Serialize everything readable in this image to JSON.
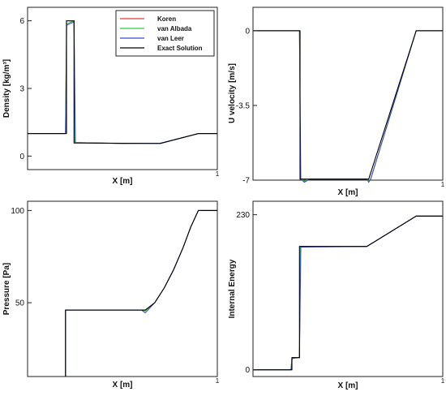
{
  "chart_data": [
    {
      "type": "line",
      "id": "density",
      "xlabel": "X [m]",
      "ylabel": "Density [kg/m³]",
      "xlim": [
        0,
        1
      ],
      "ylim": [
        -0.6,
        6.6
      ],
      "xticks": [
        {
          "v": 1,
          "label": "1"
        }
      ],
      "yticks": [
        {
          "v": 0,
          "label": "0"
        },
        {
          "v": 3,
          "label": "3"
        },
        {
          "v": 6,
          "label": "6"
        }
      ],
      "colors": {
        "koren": "#e53935",
        "van_albada": "#2ecc40",
        "van_leer": "#3b49d6",
        "exact": "#000000"
      },
      "legend": {
        "position": "top-right",
        "entries": [
          "Koren",
          "van Albada",
          "van Leer",
          "Exact Solution"
        ]
      },
      "series": [
        {
          "key": "koren",
          "name": "Koren",
          "points": [
            [
              0,
              1
            ],
            [
              0.2,
              1
            ],
            [
              0.205,
              5.85
            ],
            [
              0.23,
              5.95
            ],
            [
              0.245,
              6
            ],
            [
              0.25,
              0.6
            ],
            [
              0.5,
              0.56
            ],
            [
              0.7,
              0.57
            ],
            [
              0.9,
              1
            ],
            [
              1,
              1
            ]
          ]
        },
        {
          "key": "van_albada",
          "name": "van Albada",
          "points": [
            [
              0,
              1
            ],
            [
              0.2,
              1
            ],
            [
              0.205,
              5.85
            ],
            [
              0.23,
              5.95
            ],
            [
              0.245,
              6
            ],
            [
              0.25,
              0.6
            ],
            [
              0.5,
              0.56
            ],
            [
              0.7,
              0.57
            ],
            [
              0.9,
              1
            ],
            [
              1,
              1
            ]
          ]
        },
        {
          "key": "van_leer",
          "name": "van Leer",
          "points": [
            [
              0,
              1
            ],
            [
              0.2,
              1
            ],
            [
              0.206,
              5.8
            ],
            [
              0.23,
              5.9
            ],
            [
              0.245,
              5.95
            ],
            [
              0.252,
              0.6
            ],
            [
              0.5,
              0.56
            ],
            [
              0.7,
              0.57
            ],
            [
              0.9,
              1
            ],
            [
              1,
              1
            ]
          ]
        },
        {
          "key": "exact",
          "name": "Exact Solution",
          "points": [
            [
              0,
              1
            ],
            [
              0.205,
              1
            ],
            [
              0.205,
              6
            ],
            [
              0.245,
              6
            ],
            [
              0.245,
              0.58
            ],
            [
              0.7,
              0.56
            ],
            [
              0.9,
              1
            ],
            [
              1,
              1
            ]
          ]
        }
      ]
    },
    {
      "type": "line",
      "id": "velocity",
      "xlabel": "X [m]",
      "ylabel": "U velocity [m/s]",
      "xlim": [
        0,
        1
      ],
      "ylim": [
        -7,
        1.1
      ],
      "xticks": [
        {
          "v": 1,
          "label": "1"
        }
      ],
      "yticks": [
        {
          "v": -7,
          "label": "-7"
        },
        {
          "v": -3.5,
          "label": "-3.5"
        },
        {
          "v": 0,
          "label": "0"
        }
      ],
      "colors": {
        "koren": "#e53935",
        "van_albada": "#2ecc40",
        "van_leer": "#3b49d6",
        "exact": "#000000"
      },
      "series": [
        {
          "key": "koren",
          "name": "Koren",
          "points": [
            [
              0,
              0
            ],
            [
              0.245,
              0
            ],
            [
              0.25,
              -6.95
            ],
            [
              0.27,
              -7.05
            ],
            [
              0.3,
              -6.95
            ],
            [
              0.6,
              -6.95
            ],
            [
              0.61,
              -7.05
            ],
            [
              0.62,
              -6.95
            ],
            [
              0.86,
              0
            ],
            [
              1,
              0
            ]
          ]
        },
        {
          "key": "van_albada",
          "name": "van Albada",
          "points": [
            [
              0,
              0
            ],
            [
              0.245,
              0
            ],
            [
              0.25,
              -6.95
            ],
            [
              0.27,
              -7.05
            ],
            [
              0.3,
              -6.95
            ],
            [
              0.6,
              -6.95
            ],
            [
              0.61,
              -7.05
            ],
            [
              0.62,
              -6.95
            ],
            [
              0.86,
              0
            ],
            [
              1,
              0
            ]
          ]
        },
        {
          "key": "van_leer",
          "name": "van Leer",
          "points": [
            [
              0,
              0
            ],
            [
              0.245,
              0
            ],
            [
              0.252,
              -6.95
            ],
            [
              0.27,
              -7.1
            ],
            [
              0.3,
              -6.95
            ],
            [
              0.6,
              -6.95
            ],
            [
              0.61,
              -7.1
            ],
            [
              0.62,
              -6.95
            ],
            [
              0.86,
              0
            ],
            [
              1,
              0
            ]
          ]
        },
        {
          "key": "exact",
          "name": "Exact Solution",
          "points": [
            [
              0,
              0
            ],
            [
              0.248,
              0
            ],
            [
              0.248,
              -6.95
            ],
            [
              0.61,
              -6.95
            ],
            [
              0.86,
              0
            ],
            [
              1,
              0
            ]
          ]
        }
      ]
    },
    {
      "type": "line",
      "id": "pressure",
      "xlabel": "X [m]",
      "ylabel": "Pressure [Pa]",
      "xlim": [
        0,
        1
      ],
      "ylim": [
        10,
        105
      ],
      "xticks": [
        {
          "v": 1,
          "label": "1"
        }
      ],
      "yticks": [
        {
          "v": 50,
          "label": "50"
        },
        {
          "v": 100,
          "label": "100"
        }
      ],
      "colors": {
        "koren": "#e53935",
        "van_albada": "#2ecc40",
        "van_leer": "#3b49d6",
        "exact": "#000000"
      },
      "series": [
        {
          "key": "koren",
          "name": "Koren",
          "points": [
            [
              0.2,
              10
            ],
            [
              0.2,
              46
            ],
            [
              0.6,
              46
            ],
            [
              0.62,
              45.5
            ],
            [
              0.67,
              50
            ],
            [
              0.72,
              58
            ],
            [
              0.77,
              68
            ],
            [
              0.82,
              80
            ],
            [
              0.86,
              91
            ],
            [
              0.9,
              100
            ],
            [
              1,
              100
            ]
          ]
        },
        {
          "key": "van_albada",
          "name": "van Albada",
          "points": [
            [
              0.2,
              10
            ],
            [
              0.2,
              46
            ],
            [
              0.6,
              46
            ],
            [
              0.62,
              45.5
            ],
            [
              0.67,
              50
            ],
            [
              0.72,
              58
            ],
            [
              0.77,
              68
            ],
            [
              0.82,
              80
            ],
            [
              0.86,
              91
            ],
            [
              0.9,
              100
            ],
            [
              1,
              100
            ]
          ]
        },
        {
          "key": "van_leer",
          "name": "van Leer",
          "points": [
            [
              0.2,
              10
            ],
            [
              0.2,
              46
            ],
            [
              0.6,
              46
            ],
            [
              0.62,
              44.5
            ],
            [
              0.67,
              50
            ],
            [
              0.72,
              58
            ],
            [
              0.77,
              68
            ],
            [
              0.82,
              80
            ],
            [
              0.86,
              91
            ],
            [
              0.9,
              100
            ],
            [
              1,
              100
            ]
          ]
        },
        {
          "key": "exact",
          "name": "Exact Solution",
          "points": [
            [
              0.2,
              10
            ],
            [
              0.2,
              46
            ],
            [
              0.62,
              46
            ],
            [
              0.67,
              50
            ],
            [
              0.72,
              58
            ],
            [
              0.77,
              68
            ],
            [
              0.82,
              80
            ],
            [
              0.86,
              91
            ],
            [
              0.9,
              100
            ],
            [
              1,
              100
            ]
          ]
        }
      ]
    },
    {
      "type": "line",
      "id": "energy",
      "xlabel": "X [m]",
      "ylabel": "Internal Energy",
      "xlim": [
        0,
        1
      ],
      "ylim": [
        -10,
        250
      ],
      "xticks": [
        {
          "v": 1,
          "label": "1"
        }
      ],
      "yticks": [
        {
          "v": 0,
          "label": "0"
        },
        {
          "v": 230,
          "label": "230"
        }
      ],
      "colors": {
        "koren": "#e53935",
        "van_albada": "#2ecc40",
        "van_leer": "#3b49d6",
        "exact": "#000000"
      },
      "series": [
        {
          "key": "koren",
          "name": "Koren",
          "points": [
            [
              0,
              0
            ],
            [
              0.2,
              0
            ],
            [
              0.205,
              18
            ],
            [
              0.245,
              18
            ],
            [
              0.25,
              183
            ],
            [
              0.6,
              183
            ],
            [
              0.86,
              228
            ],
            [
              1,
              228
            ]
          ]
        },
        {
          "key": "van_albada",
          "name": "van Albada",
          "points": [
            [
              0,
              0
            ],
            [
              0.2,
              0
            ],
            [
              0.205,
              18
            ],
            [
              0.245,
              18
            ],
            [
              0.25,
              183
            ],
            [
              0.6,
              183
            ],
            [
              0.86,
              228
            ],
            [
              1,
              228
            ]
          ]
        },
        {
          "key": "van_leer",
          "name": "van Leer",
          "points": [
            [
              0,
              0
            ],
            [
              0.2,
              0
            ],
            [
              0.207,
              17
            ],
            [
              0.245,
              18
            ],
            [
              0.252,
              182
            ],
            [
              0.6,
              183
            ],
            [
              0.86,
              228
            ],
            [
              1,
              228
            ]
          ]
        },
        {
          "key": "exact",
          "name": "Exact Solution",
          "points": [
            [
              0,
              0
            ],
            [
              0.205,
              0
            ],
            [
              0.205,
              18
            ],
            [
              0.245,
              18
            ],
            [
              0.245,
              183
            ],
            [
              0.6,
              183
            ],
            [
              0.86,
              228
            ],
            [
              1,
              228
            ]
          ]
        }
      ]
    }
  ]
}
